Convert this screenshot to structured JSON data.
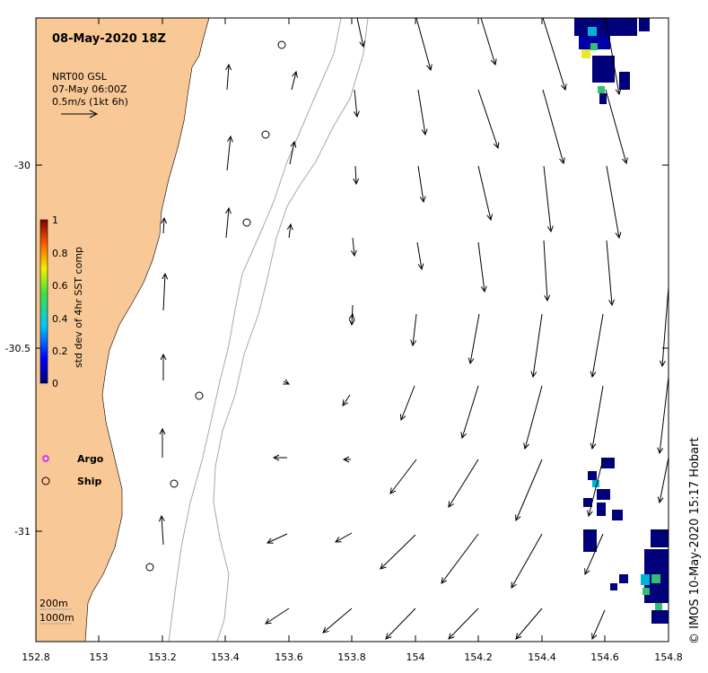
{
  "title": "08-May-2020 18Z",
  "current_source": {
    "line1": "NRT00 GSL",
    "line2": "07-May 06:00Z",
    "line3": "0.5m/s (1kt 6h)"
  },
  "colorbar": {
    "label": "std dev of 4hr SST comp",
    "ticks": [
      "1",
      "0.8",
      "0.6",
      "0.4",
      "0.2",
      "0"
    ]
  },
  "legend": {
    "argo": "Argo",
    "ship": "Ship"
  },
  "contours": [
    "200m",
    "1000m"
  ],
  "credit": "© IMOS 10-May-2020 15:17 Hobart",
  "axes": {
    "x_ticks": [
      "152.8",
      "153",
      "153.2",
      "153.4",
      "153.6",
      "153.8",
      "154",
      "154.2",
      "154.4",
      "154.6",
      "154.8"
    ],
    "y_ticks": [
      "-30",
      "-30.5",
      "-31"
    ],
    "xlim": [
      152.8,
      154.8
    ],
    "ylim": [
      -31.3,
      -29.6
    ]
  },
  "colors": {
    "land": "#f8c896",
    "contour": "#a8a8a8",
    "argo": "#e040e0"
  }
}
